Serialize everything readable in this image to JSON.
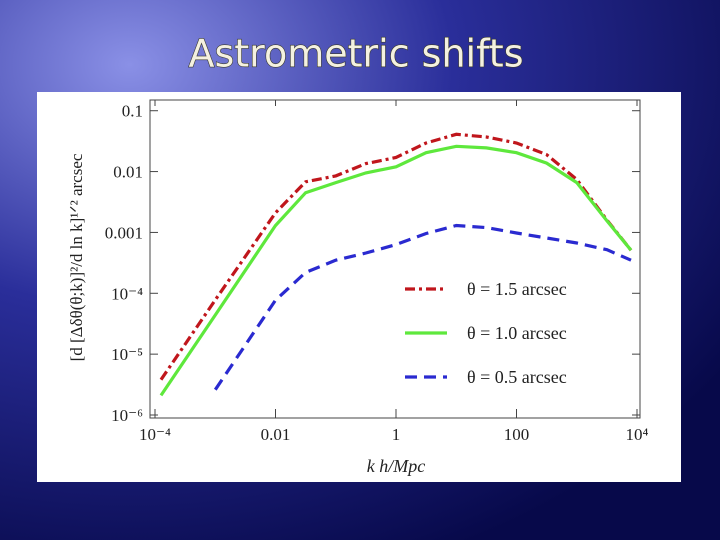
{
  "chart_data": {
    "type": "line",
    "title": "Astrometric shifts",
    "x_label": "k h/Mpc",
    "y_label": "[d [Δδθ(θ;k)]²/d ln k]¹ᐟ² arcsec",
    "xlog": true,
    "ylog": true,
    "xlim": [
      0.0001,
      10000
    ],
    "ylim": [
      1e-06,
      0.15
    ],
    "xticks": [
      {
        "value": 0.0001,
        "label": "10⁻⁴"
      },
      0.01,
      1,
      100,
      {
        "value": 10000,
        "label": "10⁴"
      }
    ],
    "yticks": [
      0.1,
      0.01,
      0.001,
      {
        "value": 0.0001,
        "label": "10⁻⁴"
      },
      {
        "value": 1e-05,
        "label": "10⁻⁵"
      },
      {
        "value": 1e-06,
        "label": "10⁻⁶"
      }
    ],
    "legend_position": "lower right",
    "x": [
      0.000126,
      0.001,
      0.01,
      0.0316,
      0.1,
      0.316,
      1,
      3.16,
      10,
      31.6,
      100,
      316,
      1000,
      3162,
      7943
    ],
    "series": [
      {
        "name": "θ = 1.5 arcsec",
        "color": "#c0161c",
        "dash": "dashdot",
        "values": [
          3.8e-06,
          7.8e-05,
          0.0021,
          0.0068,
          0.0085,
          0.0135,
          0.017,
          0.0295,
          0.041,
          0.037,
          0.0295,
          0.019,
          0.0074,
          0.0016,
          0.00051
        ]
      },
      {
        "name": "θ = 1.0 arcsec",
        "color": "#5ee83c",
        "dash": "solid",
        "values": [
          2.1e-06,
          4.4e-05,
          0.0013,
          0.0045,
          0.0066,
          0.0095,
          0.012,
          0.0204,
          0.026,
          0.0245,
          0.0204,
          0.0138,
          0.0066,
          0.00155,
          0.00051
        ]
      },
      {
        "name": "θ = 0.5 arcsec",
        "color": "#2a2ad0",
        "dash": "dashed",
        "values": [
          null,
          2.6e-06,
          7.7e-05,
          0.00022,
          0.00035,
          0.00046,
          0.00063,
          0.00096,
          0.0013,
          0.0012,
          0.00098,
          0.00081,
          0.00067,
          0.00052,
          0.00035
        ]
      }
    ]
  }
}
